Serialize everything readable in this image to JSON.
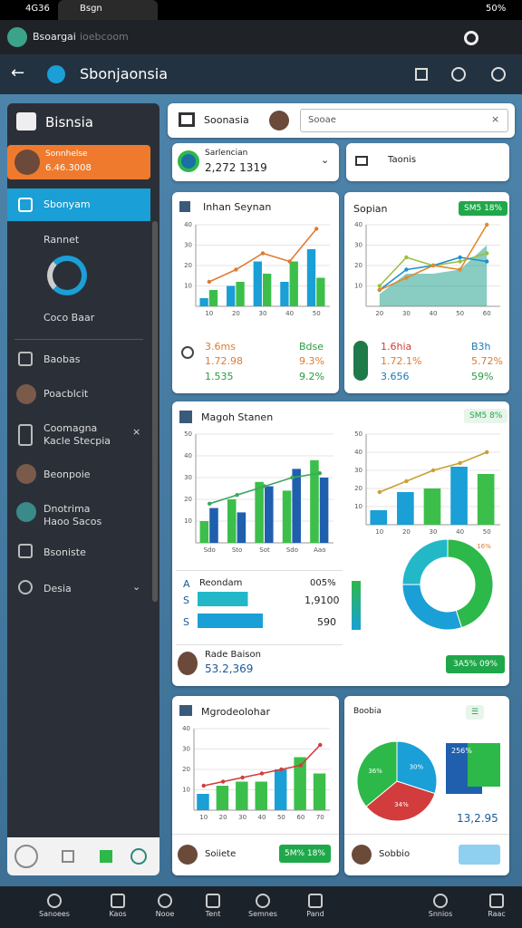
{
  "status": {
    "left": "4G36",
    "tab": "Bsgn",
    "battery": "50%"
  },
  "browser": {
    "title": "Bsoargai",
    "url": "ioebcoom"
  },
  "app": {
    "title": "Sbonjaonsia"
  },
  "sidebar": {
    "title": "Bisnsia",
    "profile": {
      "name": "Sonnhelse",
      "id": "6.46.3008"
    },
    "items": [
      "Sbonyam",
      "Rannet",
      "Coco Baar",
      "Baobas",
      "Poacblcit",
      "Coomagna",
      "Kacle Stecpia",
      "Beonpoie",
      "Dnotrima",
      "Haoo Sacos",
      "Bsoniste",
      "Desia"
    ]
  },
  "header": {
    "title": "Soonasia",
    "search": "Sooae",
    "selector": {
      "label": "Sarlencian",
      "value": "2,272 1319"
    },
    "button": "Taonis"
  },
  "card1": {
    "title": "Inhan Seynan",
    "stats": [
      [
        "3.6ms",
        "Bdse"
      ],
      [
        "1.72.98",
        "9.3%"
      ],
      [
        "1.535",
        "9.2%"
      ]
    ]
  },
  "card2": {
    "title": "Sopian",
    "badge": "SM5 18%",
    "stats": [
      [
        "1.6hia",
        "B3h"
      ],
      [
        "1.72.1%",
        "5.72%"
      ],
      [
        "3.656",
        "59%"
      ]
    ]
  },
  "card3": {
    "title": "Magoh Stanen",
    "badge": "SM5 8%",
    "rows": [
      {
        "marker": "A",
        "label": "Reondam",
        "text": "005%"
      },
      {
        "marker": "S",
        "text": "1,9100"
      },
      {
        "marker": "S",
        "text": "590"
      }
    ],
    "hbars": {
      "xlim": [
        0,
        100
      ],
      "values": [
        37,
        48
      ],
      "colors": [
        "#22b8c8",
        "#1a9fd6"
      ]
    },
    "footer": {
      "name": "Rade Baison",
      "value": "53.2,369"
    },
    "footer_badge": "3A5% 09%",
    "donut": {
      "type": "donut",
      "values": [
        45,
        30,
        25
      ],
      "colors": [
        "#2db84a",
        "#1a9fd6",
        "#22b8c8"
      ],
      "label": "16%"
    }
  },
  "card4": {
    "title": "Mgrodeolohar",
    "footer": "Soiiete",
    "badge": "5M% 18%"
  },
  "card5": {
    "title": "Boobia",
    "footer": "Sobbio",
    "box_label": "256%",
    "value": "13,2.95",
    "pie": {
      "type": "pie",
      "values": [
        30,
        34,
        36
      ],
      "value_labels": [
        "30%",
        "34%",
        "36%"
      ],
      "colors": [
        "#1a9fd6",
        "#d23c3c",
        "#2db84a"
      ]
    }
  },
  "charts": [
    {
      "type": "bar-line",
      "categories": [
        "10",
        "20",
        "30",
        "40",
        "50"
      ],
      "ylim": [
        0,
        40
      ],
      "yticks": [
        10,
        20,
        30,
        40
      ],
      "bars": [
        {
          "color": "#1a9fd6",
          "values": [
            4,
            10,
            22,
            12,
            28
          ]
        },
        {
          "color": "#3cbf4a",
          "values": [
            8,
            12,
            16,
            22,
            14
          ]
        }
      ],
      "lines": [
        {
          "color": "#e07a30",
          "values": [
            12,
            18,
            26,
            22,
            38
          ]
        }
      ]
    },
    {
      "type": "area-line",
      "categories": [
        "20",
        "30",
        "40",
        "50",
        "60"
      ],
      "ylim": [
        0,
        40
      ],
      "yticks": [
        10,
        20,
        30,
        40
      ],
      "areas": [
        {
          "color": "#3aaa9a",
          "values": [
            6,
            16,
            16,
            18,
            30
          ]
        }
      ],
      "lines": [
        {
          "color": "#9ac040",
          "values": [
            10,
            24,
            20,
            22,
            26
          ]
        },
        {
          "color": "#1f8fd0",
          "values": [
            8,
            18,
            20,
            24,
            22
          ]
        },
        {
          "color": "#e08a30",
          "values": [
            8,
            14,
            20,
            18,
            40
          ]
        }
      ]
    },
    {
      "type": "bar-line",
      "categories": [
        "Sdo",
        "Sto",
        "Sot",
        "Sdo",
        "Aao"
      ],
      "ylim": [
        0,
        50
      ],
      "yticks": [
        10,
        20,
        30,
        40,
        50
      ],
      "bars": [
        {
          "color": "#3cbf4a",
          "values": [
            10,
            20,
            28,
            24,
            38
          ]
        },
        {
          "color": "#1f5fae",
          "values": [
            16,
            14,
            26,
            34,
            30
          ]
        }
      ],
      "lines": [
        {
          "color": "#3aa860",
          "values": [
            18,
            22,
            26,
            30,
            32
          ]
        }
      ]
    },
    {
      "type": "bar-line",
      "categories": [
        "10",
        "20",
        "30",
        "40",
        "50"
      ],
      "ylim": [
        0,
        50
      ],
      "yticks": [
        10,
        20,
        30,
        40,
        50
      ],
      "bars": [
        {
          "colors": [
            "#1a9fd6",
            "#1a9fd6",
            "#3cbf4a",
            "#1a9fd6",
            "#3cbf4a"
          ],
          "values": [
            8,
            18,
            20,
            32,
            28
          ]
        }
      ],
      "lines": [
        {
          "color": "#c9a030",
          "values": [
            18,
            24,
            30,
            34,
            40
          ]
        }
      ]
    },
    {
      "type": "bar-line",
      "categories": [
        "10",
        "20",
        "30",
        "40",
        "50",
        "60",
        "70"
      ],
      "ylim": [
        0,
        40
      ],
      "yticks": [
        10,
        20,
        30,
        40
      ],
      "bars": [
        {
          "colors": [
            "#1a9fd6",
            "#3cbf4a",
            "#3cbf4a",
            "#3cbf4a",
            "#1a9fd6",
            "#3cbf4a",
            "#3cbf4a"
          ],
          "values": [
            8,
            12,
            14,
            14,
            20,
            26,
            18
          ]
        }
      ],
      "lines": [
        {
          "color": "#d23c3c",
          "values": [
            12,
            14,
            16,
            18,
            20,
            22,
            32
          ]
        }
      ]
    }
  ],
  "nav": [
    "Sanoees",
    "Kaos",
    "Nooe",
    "Tent",
    "Semnes",
    "Pand",
    "Snnios",
    "Raac"
  ]
}
